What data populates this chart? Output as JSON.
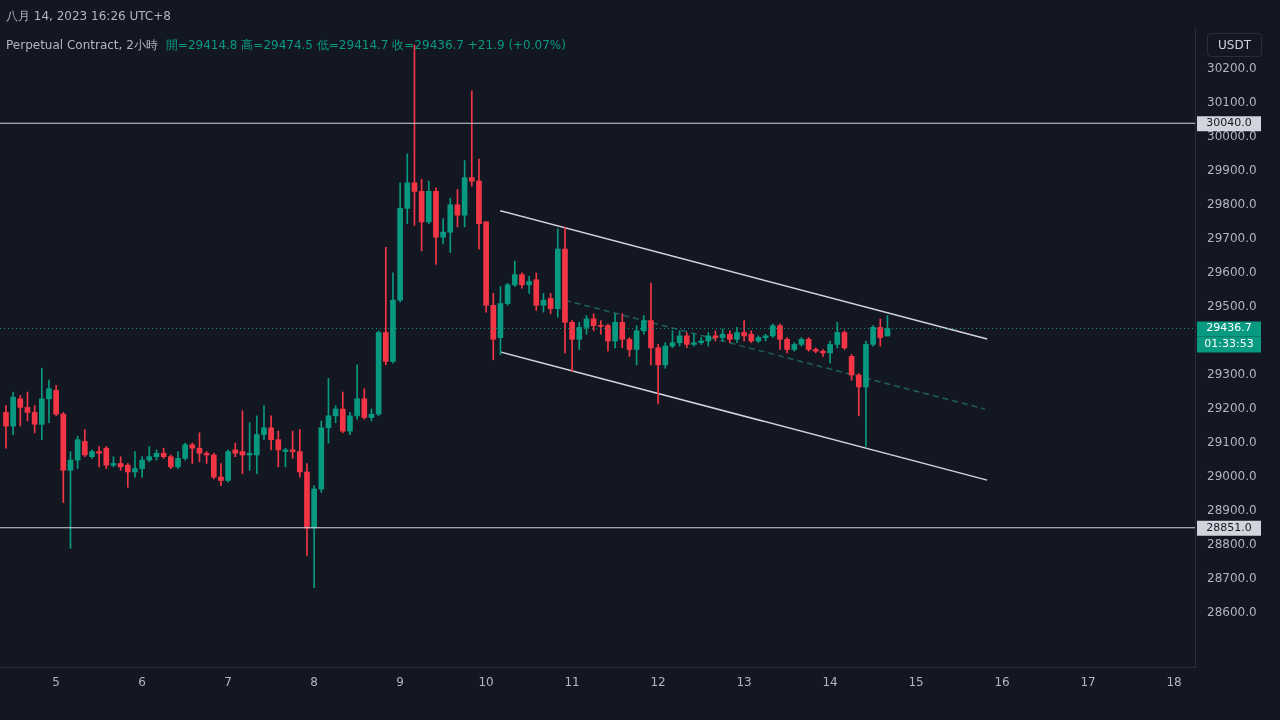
{
  "chart_data": {
    "type": "candlestick",
    "title": "Perpetual Contract, 2小時",
    "subtitle": "開=29414.8 高=29474.5 低=29414.7 收=29436.7 +21.9 (+0.07%)",
    "x": [
      "2023-08-04T10:00",
      "2023-08-04T12:00",
      "2023-08-04T14:00",
      "2023-08-04T16:00",
      "2023-08-04T18:00",
      "2023-08-04T20:00",
      "2023-08-04T22:00",
      "2023-08-05T00:00",
      "2023-08-05T02:00",
      "2023-08-05T04:00",
      "2023-08-05T06:00",
      "2023-08-05T08:00",
      "2023-08-05T10:00",
      "2023-08-05T12:00",
      "2023-08-05T14:00",
      "2023-08-05T16:00",
      "2023-08-05T18:00",
      "2023-08-05T20:00",
      "2023-08-05T22:00",
      "2023-08-06T00:00",
      "2023-08-06T02:00",
      "2023-08-06T04:00",
      "2023-08-06T06:00",
      "2023-08-06T08:00",
      "2023-08-06T10:00",
      "2023-08-06T12:00",
      "2023-08-06T14:00",
      "2023-08-06T16:00",
      "2023-08-06T18:00",
      "2023-08-06T20:00",
      "2023-08-06T22:00",
      "2023-08-07T00:00",
      "2023-08-07T02:00",
      "2023-08-07T04:00",
      "2023-08-07T06:00",
      "2023-08-07T08:00",
      "2023-08-07T10:00",
      "2023-08-07T12:00",
      "2023-08-07T14:00",
      "2023-08-07T16:00",
      "2023-08-07T18:00",
      "2023-08-07T20:00",
      "2023-08-07T22:00",
      "2023-08-08T00:00",
      "2023-08-08T02:00",
      "2023-08-08T04:00",
      "2023-08-08T06:00",
      "2023-08-08T08:00",
      "2023-08-08T10:00",
      "2023-08-08T12:00",
      "2023-08-08T14:00",
      "2023-08-08T16:00",
      "2023-08-08T18:00",
      "2023-08-08T20:00",
      "2023-08-08T22:00",
      "2023-08-09T00:00",
      "2023-08-09T02:00",
      "2023-08-09T04:00",
      "2023-08-09T06:00",
      "2023-08-09T08:00",
      "2023-08-09T10:00",
      "2023-08-09T12:00",
      "2023-08-09T14:00",
      "2023-08-09T16:00",
      "2023-08-09T18:00",
      "2023-08-09T20:00",
      "2023-08-09T22:00",
      "2023-08-10T00:00",
      "2023-08-10T02:00",
      "2023-08-10T04:00",
      "2023-08-10T06:00",
      "2023-08-10T08:00",
      "2023-08-10T10:00",
      "2023-08-10T12:00",
      "2023-08-10T14:00",
      "2023-08-10T16:00",
      "2023-08-10T18:00",
      "2023-08-10T20:00",
      "2023-08-10T22:00",
      "2023-08-11T00:00",
      "2023-08-11T02:00",
      "2023-08-11T04:00",
      "2023-08-11T06:00",
      "2023-08-11T08:00",
      "2023-08-11T10:00",
      "2023-08-11T12:00",
      "2023-08-11T14:00",
      "2023-08-11T16:00",
      "2023-08-11T18:00",
      "2023-08-11T20:00",
      "2023-08-11T22:00",
      "2023-08-12T00:00",
      "2023-08-12T02:00",
      "2023-08-12T04:00",
      "2023-08-12T06:00",
      "2023-08-12T08:00",
      "2023-08-12T10:00",
      "2023-08-12T12:00",
      "2023-08-12T14:00",
      "2023-08-12T16:00",
      "2023-08-12T18:00",
      "2023-08-12T20:00",
      "2023-08-12T22:00",
      "2023-08-13T00:00",
      "2023-08-13T02:00",
      "2023-08-13T04:00",
      "2023-08-13T06:00",
      "2023-08-13T08:00",
      "2023-08-13T10:00",
      "2023-08-13T12:00",
      "2023-08-13T14:00",
      "2023-08-13T16:00",
      "2023-08-13T18:00",
      "2023-08-13T20:00",
      "2023-08-13T22:00",
      "2023-08-14T00:00",
      "2023-08-14T02:00",
      "2023-08-14T04:00",
      "2023-08-14T06:00",
      "2023-08-14T08:00",
      "2023-08-14T10:00",
      "2023-08-14T12:00",
      "2023-08-14T14:00",
      "2023-08-14T16:00"
    ],
    "ohlc": [
      [
        29190,
        29210,
        29085,
        29150
      ],
      [
        29150,
        29250,
        29125,
        29235
      ],
      [
        29230,
        29240,
        29150,
        29205
      ],
      [
        29205,
        29250,
        29165,
        29190
      ],
      [
        29190,
        29210,
        29130,
        29155
      ],
      [
        29155,
        29320,
        29110,
        29230
      ],
      [
        29230,
        29285,
        29160,
        29260
      ],
      [
        29255,
        29270,
        29180,
        29185
      ],
      [
        29185,
        29190,
        28925,
        29020
      ],
      [
        29020,
        29075,
        28790,
        29050
      ],
      [
        29050,
        29120,
        29025,
        29110
      ],
      [
        29105,
        29140,
        29060,
        29065
      ],
      [
        29060,
        29080,
        29055,
        29075
      ],
      [
        29075,
        29090,
        29030,
        29070
      ],
      [
        29085,
        29090,
        29025,
        29035
      ],
      [
        29035,
        29060,
        29030,
        29040
      ],
      [
        29040,
        29060,
        29020,
        29030
      ],
      [
        29035,
        29040,
        28970,
        29015
      ],
      [
        29015,
        29075,
        29000,
        29025
      ],
      [
        29025,
        29060,
        29000,
        29050
      ],
      [
        29050,
        29090,
        29045,
        29060
      ],
      [
        29060,
        29080,
        29050,
        29070
      ],
      [
        29070,
        29085,
        29055,
        29060
      ],
      [
        29060,
        29065,
        29025,
        29030
      ],
      [
        29030,
        29075,
        29025,
        29055
      ],
      [
        29055,
        29100,
        29050,
        29095
      ],
      [
        29095,
        29100,
        29040,
        29085
      ],
      [
        29085,
        29130,
        29045,
        29070
      ],
      [
        29070,
        29075,
        29040,
        29065
      ],
      [
        29065,
        29070,
        28995,
        29000
      ],
      [
        29000,
        29040,
        28975,
        28990
      ],
      [
        28990,
        29080,
        28985,
        29075
      ],
      [
        29080,
        29100,
        29060,
        29070
      ],
      [
        29075,
        29195,
        29010,
        29065
      ],
      [
        29065,
        29160,
        29020,
        29070
      ],
      [
        29065,
        29180,
        29010,
        29125
      ],
      [
        29125,
        29210,
        29110,
        29145
      ],
      [
        29145,
        29180,
        29080,
        29110
      ],
      [
        29110,
        29135,
        29030,
        29080
      ],
      [
        29075,
        29085,
        29030,
        29080
      ],
      [
        29080,
        29135,
        29055,
        29075
      ],
      [
        29075,
        29140,
        29000,
        29015
      ],
      [
        29015,
        29040,
        28770,
        28850
      ],
      [
        28850,
        28975,
        28675,
        28965
      ],
      [
        28965,
        29165,
        28955,
        29145
      ],
      [
        29145,
        29290,
        29100,
        29180
      ],
      [
        29180,
        29210,
        29160,
        29200
      ],
      [
        29200,
        29250,
        29130,
        29135
      ],
      [
        29135,
        29190,
        29125,
        29180
      ],
      [
        29180,
        29330,
        29170,
        29230
      ],
      [
        29230,
        29260,
        29170,
        29175
      ],
      [
        29175,
        29200,
        29165,
        29185
      ],
      [
        29185,
        29430,
        29180,
        29425
      ],
      [
        29425,
        29675,
        29330,
        29340
      ],
      [
        29340,
        29600,
        29335,
        29520
      ],
      [
        29520,
        29865,
        29515,
        29790
      ],
      [
        29790,
        29950,
        29745,
        29865
      ],
      [
        29865,
        30270,
        29740,
        29840
      ],
      [
        29840,
        29875,
        29665,
        29750
      ],
      [
        29750,
        29870,
        29745,
        29840
      ],
      [
        29840,
        29850,
        29625,
        29705
      ],
      [
        29705,
        29760,
        29685,
        29720
      ],
      [
        29720,
        29820,
        29660,
        29800
      ],
      [
        29800,
        29845,
        29735,
        29770
      ],
      [
        29770,
        29930,
        29735,
        29880
      ],
      [
        29880,
        30135,
        29855,
        29870
      ],
      [
        29870,
        29935,
        29670,
        29745
      ],
      [
        29750,
        29750,
        29485,
        29505
      ],
      [
        29505,
        29540,
        29345,
        29405
      ],
      [
        29410,
        29560,
        29360,
        29510
      ],
      [
        29510,
        29570,
        29505,
        29565
      ],
      [
        29565,
        29635,
        29560,
        29595
      ],
      [
        29595,
        29600,
        29555,
        29565
      ],
      [
        29565,
        29590,
        29540,
        29575
      ],
      [
        29580,
        29600,
        29490,
        29505
      ],
      [
        29505,
        29540,
        29485,
        29520
      ],
      [
        29525,
        29540,
        29480,
        29495
      ],
      [
        29495,
        29730,
        29470,
        29670
      ],
      [
        29670,
        29735,
        29365,
        29455
      ],
      [
        29455,
        29460,
        29310,
        29405
      ],
      [
        29405,
        29455,
        29375,
        29440
      ],
      [
        29440,
        29475,
        29420,
        29465
      ],
      [
        29465,
        29480,
        29430,
        29445
      ],
      [
        29445,
        29460,
        29420,
        29443
      ],
      [
        29445,
        29450,
        29370,
        29400
      ],
      [
        29400,
        29480,
        29380,
        29455
      ],
      [
        29455,
        29480,
        29380,
        29405
      ],
      [
        29405,
        29410,
        29355,
        29375
      ],
      [
        29375,
        29445,
        29330,
        29430
      ],
      [
        29430,
        29475,
        29420,
        29460
      ],
      [
        29460,
        29570,
        29330,
        29380
      ],
      [
        29380,
        29390,
        29215,
        29330
      ],
      [
        29330,
        29395,
        29320,
        29385
      ],
      [
        29385,
        29430,
        29380,
        29395
      ],
      [
        29395,
        29430,
        29385,
        29415
      ],
      [
        29415,
        29425,
        29380,
        29390
      ],
      [
        29390,
        29420,
        29385,
        29395
      ],
      [
        29395,
        29410,
        29390,
        29400
      ],
      [
        29400,
        29425,
        29385,
        29415
      ],
      [
        29415,
        29430,
        29400,
        29410
      ],
      [
        29410,
        29435,
        29400,
        29420
      ],
      [
        29420,
        29430,
        29395,
        29405
      ],
      [
        29405,
        29440,
        29395,
        29425
      ],
      [
        29425,
        29460,
        29400,
        29415
      ],
      [
        29420,
        29430,
        29395,
        29400
      ],
      [
        29400,
        29415,
        29395,
        29410
      ],
      [
        29410,
        29420,
        29400,
        29415
      ],
      [
        29415,
        29450,
        29410,
        29445
      ],
      [
        29445,
        29450,
        29375,
        29405
      ],
      [
        29405,
        29410,
        29365,
        29375
      ],
      [
        29375,
        29395,
        29370,
        29390
      ],
      [
        29390,
        29410,
        29385,
        29405
      ],
      [
        29405,
        29410,
        29370,
        29375
      ],
      [
        29375,
        29380,
        29365,
        29370
      ],
      [
        29370,
        29375,
        29355,
        29365
      ],
      [
        29365,
        29400,
        29335,
        29390
      ],
      [
        29390,
        29455,
        29380,
        29425
      ],
      [
        29425,
        29430,
        29375,
        29380
      ],
      [
        29355,
        29360,
        29285,
        29300
      ],
      [
        29300,
        29305,
        29180,
        29265
      ],
      [
        29265,
        29400,
        29090,
        29390
      ],
      [
        29390,
        29445,
        29385,
        29440
      ],
      [
        29440,
        29465,
        29385,
        29410
      ],
      [
        29414.8,
        29474.5,
        29414.7,
        29436.7
      ]
    ],
    "colors": [
      "#f23645",
      "#089981",
      "#f23645",
      "#f23645",
      "#f23645",
      "#089981",
      "#089981",
      "#f23645",
      "#f23645",
      "#089981",
      "#089981",
      "#f23645",
      "#089981",
      "#f23645",
      "#f23645",
      "#089981",
      "#f23645",
      "#f23645",
      "#089981",
      "#089981",
      "#089981",
      "#089981",
      "#f23645",
      "#f23645",
      "#089981",
      "#089981",
      "#f23645",
      "#f23645",
      "#f23645",
      "#f23645",
      "#f23645",
      "#089981",
      "#f23645",
      "#f23645",
      "#089981",
      "#089981",
      "#089981",
      "#f23645",
      "#f23645",
      "#089981",
      "#f23645",
      "#f23645",
      "#f23645",
      "#089981",
      "#089981",
      "#089981",
      "#089981",
      "#f23645",
      "#089981",
      "#089981",
      "#f23645",
      "#089981",
      "#089981",
      "#f23645",
      "#089981",
      "#089981",
      "#089981",
      "#f23645",
      "#f23645",
      "#089981",
      "#f23645",
      "#089981",
      "#089981",
      "#f23645",
      "#089981",
      "#f23645",
      "#f23645",
      "#f23645",
      "#f23645",
      "#089981",
      "#089981",
      "#089981",
      "#f23645",
      "#089981",
      "#f23645",
      "#089981",
      "#f23645",
      "#089981",
      "#f23645",
      "#f23645",
      "#089981",
      "#089981",
      "#f23645",
      "#f23645",
      "#f23645",
      "#089981",
      "#f23645",
      "#f23645",
      "#089981",
      "#089981",
      "#f23645",
      "#f23645",
      "#089981",
      "#089981",
      "#089981",
      "#f23645",
      "#089981",
      "#089981",
      "#089981",
      "#f23645",
      "#089981",
      "#f23645",
      "#089981",
      "#f23645",
      "#f23645",
      "#089981",
      "#089981",
      "#089981",
      "#f23645",
      "#f23645",
      "#089981",
      "#089981",
      "#f23645",
      "#f23645",
      "#f23645",
      "#089981",
      "#089981",
      "#f23645",
      "#f23645",
      "#f23645",
      "#089981",
      "#089981",
      "#f23645",
      "#089981"
    ],
    "series": [
      {
        "type": "line",
        "x": [
          "2023-08-10T03:55",
          "2023-08-15T19:50"
        ],
        "values": [
          29783,
          29406
        ],
        "color": "#d1d4dc",
        "line_style": "solid"
      },
      {
        "type": "line",
        "x": [
          "2023-08-10T03:55",
          "2023-08-15T19:50"
        ],
        "values": [
          29368,
          28991
        ],
        "color": "#d1d4dc",
        "line_style": "solid"
      },
      {
        "type": "line",
        "x": [
          "2023-08-10T22:00",
          "2023-08-15T19:10"
        ],
        "values": [
          29520,
          29200
        ],
        "color": "#1f5f5a",
        "line_style": "dashed"
      }
    ],
    "xlim": [
      "2023-08-04T08:20",
      "2023-08-18T05:50"
    ],
    "xticks": [
      {
        "value": "2023-08-05",
        "label": "5"
      },
      {
        "value": "2023-08-06",
        "label": "6"
      },
      {
        "value": "2023-08-07",
        "label": "7"
      },
      {
        "value": "2023-08-08",
        "label": "8"
      },
      {
        "value": "2023-08-09",
        "label": "9"
      },
      {
        "value": "2023-08-10",
        "label": "10"
      },
      {
        "value": "2023-08-11",
        "label": "11"
      },
      {
        "value": "2023-08-12",
        "label": "12"
      },
      {
        "value": "2023-08-13",
        "label": "13"
      },
      {
        "value": "2023-08-14",
        "label": "14"
      },
      {
        "value": "2023-08-15",
        "label": "15"
      },
      {
        "value": "2023-08-16",
        "label": "16"
      },
      {
        "value": "2023-08-17",
        "label": "17"
      },
      {
        "value": "2023-08-18",
        "label": "18"
      }
    ],
    "ylim": [
      28440,
      30320
    ],
    "yticks": [
      {
        "value": 28600,
        "label": "28600.0"
      },
      {
        "value": 28700,
        "label": "28700.0"
      },
      {
        "value": 28800,
        "label": "28800.0"
      },
      {
        "value": 28900,
        "label": "28900.0"
      },
      {
        "value": 29000,
        "label": "29000.0"
      },
      {
        "value": 29100,
        "label": "29100.0"
      },
      {
        "value": 29200,
        "label": "29200.0"
      },
      {
        "value": 29300,
        "label": "29300.0"
      },
      {
        "value": 29500,
        "label": "29500.0"
      },
      {
        "value": 29600,
        "label": "29600.0"
      },
      {
        "value": 29700,
        "label": "29700.0"
      },
      {
        "value": 29800,
        "label": "29800.0"
      },
      {
        "value": 29900,
        "label": "29900.0"
      },
      {
        "value": 30000,
        "label": "30000.0"
      },
      {
        "value": 30100,
        "label": "30100.0"
      },
      {
        "value": 30200,
        "label": "30200.0"
      }
    ],
    "grid": false,
    "legend": false,
    "marker": "none",
    "ref_lines": [
      {
        "axis": "y",
        "value": 30040,
        "label": "30040.0",
        "color": "#d1d4dc",
        "line_style": "solid"
      },
      {
        "axis": "y",
        "value": 28851,
        "label": "28851.0",
        "color": "#d1d4dc",
        "line_style": "solid"
      },
      {
        "axis": "y",
        "value": 29436.7,
        "label": "29436.7",
        "color": "#089981",
        "line_style": "dotted"
      }
    ],
    "annotations": [
      "八月 14, 2023 16:26 UTC+8",
      "USDT",
      "01:33:53"
    ]
  }
}
